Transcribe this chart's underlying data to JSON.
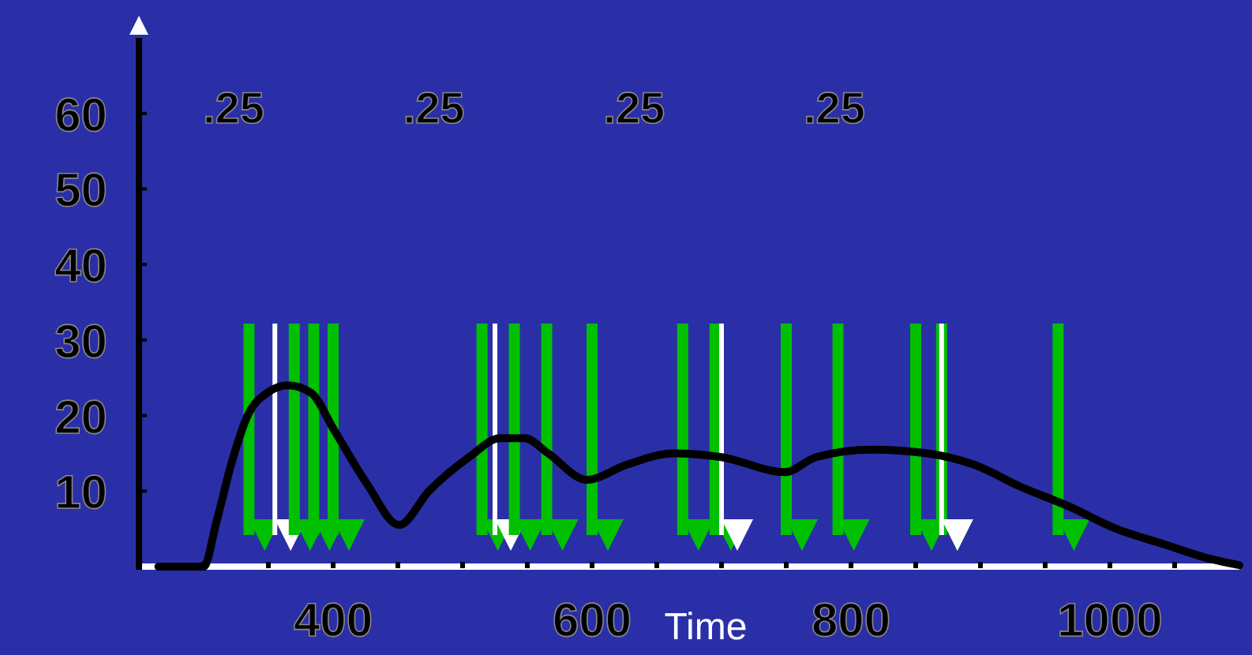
{
  "chart_data": {
    "type": "line",
    "xlabel": "Time",
    "xlim": [
      250,
      1100
    ],
    "ylim": [
      0,
      70
    ],
    "xticks": [
      {
        "value": 300,
        "label": null
      },
      {
        "value": 350,
        "label": null
      },
      400,
      {
        "value": 450,
        "label": null
      },
      {
        "value": 500,
        "label": null
      },
      {
        "value": 550,
        "label": null
      },
      600,
      {
        "value": 650,
        "label": null
      },
      {
        "value": 700,
        "label": null
      },
      {
        "value": 750,
        "label": null
      },
      800,
      {
        "value": 850,
        "label": null
      },
      {
        "value": 900,
        "label": null
      },
      {
        "value": 950,
        "label": null
      },
      1000,
      {
        "value": 1050,
        "label": null
      }
    ],
    "yticks": [
      10,
      20,
      30,
      40,
      50,
      60
    ],
    "grid": false,
    "marker": "none",
    "line_style": "solid",
    "annotations": [
      ".25",
      ".25",
      ".25",
      ".25"
    ],
    "ref_lines": [
      {
        "axis": "x",
        "value": 335,
        "color": "#00c000"
      },
      {
        "axis": "x",
        "value": 355,
        "color": "#ffffff"
      },
      {
        "axis": "x",
        "value": 370,
        "color": "#00c000"
      },
      {
        "axis": "x",
        "value": 385,
        "color": "#00c000"
      },
      {
        "axis": "x",
        "value": 400,
        "color": "#00c000"
      },
      {
        "axis": "x",
        "value": 515,
        "color": "#00c000"
      },
      {
        "axis": "x",
        "value": 525,
        "color": "#ffffff"
      },
      {
        "axis": "x",
        "value": 540,
        "color": "#00c000"
      },
      {
        "axis": "x",
        "value": 565,
        "color": "#00c000"
      },
      {
        "axis": "x",
        "value": 600,
        "color": "#00c000"
      },
      {
        "axis": "x",
        "value": 670,
        "color": "#00c000"
      },
      {
        "axis": "x",
        "value": 695,
        "color": "#00c000"
      },
      {
        "axis": "x",
        "value": 700,
        "color": "#ffffff"
      },
      {
        "axis": "x",
        "value": 750,
        "color": "#00c000"
      },
      {
        "axis": "x",
        "value": 790,
        "color": "#00c000"
      },
      {
        "axis": "x",
        "value": 850,
        "color": "#00c000"
      },
      {
        "axis": "x",
        "value": 870,
        "color": "#00c000"
      },
      {
        "axis": "x",
        "value": 870,
        "color": "#ffffff"
      },
      {
        "axis": "x",
        "value": 960,
        "color": "#00c000"
      }
    ],
    "series": [
      {
        "color": "#000000",
        "x": [
          265,
          300,
          310,
          322,
          334,
          349,
          365,
          383,
          401,
          426,
          451,
          474,
          505,
          529,
          548,
          566,
          596,
          627,
          663,
          700,
          749,
          773,
          816,
          859,
          895,
          932,
          968,
          1005,
          1041,
          1078,
          1100
        ],
        "values": [
          0,
          0,
          6,
          14,
          20,
          23,
          24,
          23,
          18,
          11,
          5.5,
          10,
          14.5,
          17,
          17,
          15,
          11.5,
          13.5,
          15,
          14.5,
          12.5,
          14.5,
          15.5,
          15,
          13.5,
          10.5,
          8,
          5,
          3,
          1,
          0.2
        ]
      }
    ]
  }
}
